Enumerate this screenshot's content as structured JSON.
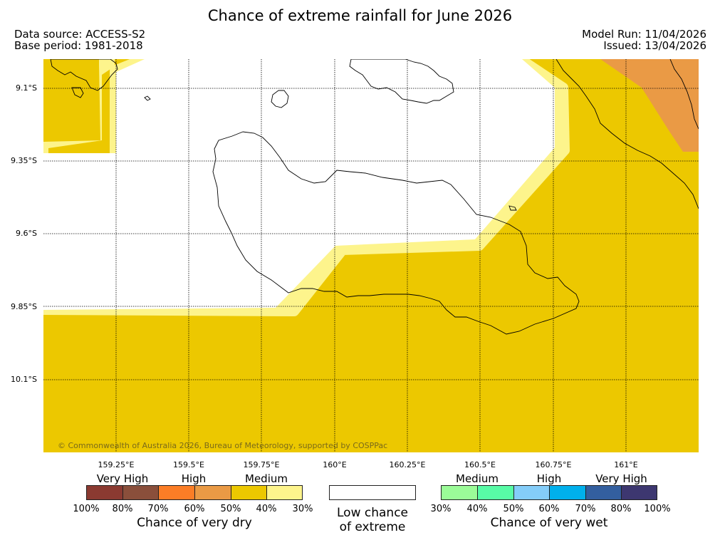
{
  "title": "Chance of extreme rainfall for June 2026",
  "meta": {
    "data_source": "Data source: ACCESS-S2",
    "base_period": "Base period: 1981-2018",
    "model_run": "Model Run: 11/04/2026",
    "issued": "Issued: 13/04/2026"
  },
  "map": {
    "latitude_labels": [
      "9.1°S",
      "9.35°S",
      "9.6°S",
      "9.85°S",
      "10.1°S"
    ],
    "longitude_labels": [
      "159.25°E",
      "159.5°E",
      "159.75°E",
      "160°E",
      "160.25°E",
      "160.5°E",
      "160.75°E",
      "161°E"
    ],
    "copyright": "© Commonwealth of Australia 2026, Bureau of Meteorology, supported by COSPPac",
    "regions": [
      {
        "category": "Medium",
        "chance": "40-50%",
        "side": "dry",
        "color": "#ecc800"
      },
      {
        "category": "Medium",
        "chance": "30-40%",
        "side": "dry",
        "color": "#fdf48c"
      },
      {
        "category": "High",
        "chance": "50-60%",
        "side": "dry",
        "color": "#ea9a45"
      },
      {
        "category": "Low chance of extreme",
        "color": "#ffffff"
      }
    ]
  },
  "legend": {
    "dry": {
      "groups": [
        "Very High",
        "High",
        "Medium"
      ],
      "colors": [
        "#8b3a31",
        "#8a4f3b",
        "#fb7d26",
        "#ea9a45",
        "#ecc800",
        "#fdf48c"
      ],
      "ticks": [
        "100%",
        "80%",
        "70%",
        "60%",
        "50%",
        "40%",
        "30%"
      ],
      "caption": "Chance of very dry"
    },
    "low": {
      "line1": "Low chance",
      "line2": "of extreme"
    },
    "wet": {
      "groups": [
        "Medium",
        "High",
        "Very High"
      ],
      "colors": [
        "#9bfb98",
        "#58fba6",
        "#84cdf9",
        "#00b0ec",
        "#335f9f",
        "#3d3770"
      ],
      "ticks": [
        "30%",
        "40%",
        "50%",
        "60%",
        "70%",
        "80%",
        "100%"
      ],
      "caption": "Chance of very wet"
    }
  }
}
